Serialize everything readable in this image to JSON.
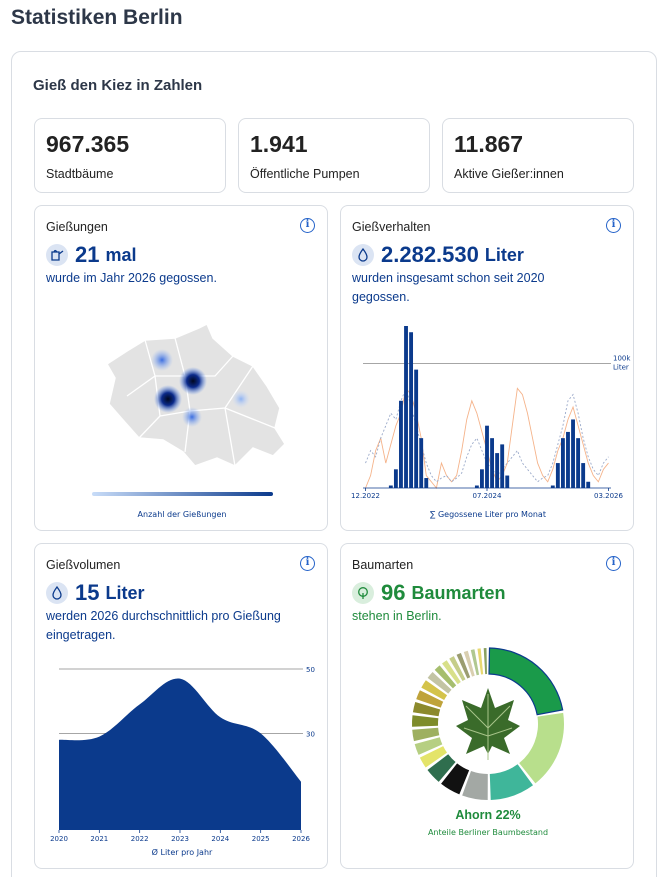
{
  "page_title": "Statistiken Berlin",
  "panel_title": "Gieß den Kiez in Zahlen",
  "stats": [
    {
      "value": "967.365",
      "label": "Stadtbäume"
    },
    {
      "value": "1.941",
      "label": "Öffentliche Pumpen"
    },
    {
      "value": "11.867",
      "label": "Aktive Gießer:innen"
    }
  ],
  "cards": {
    "giessungen": {
      "title": "Gießungen",
      "value": "21",
      "unit": "mal",
      "subtitle": "wurde im Jahr 2026 gegossen.",
      "legend": "Anzahl der Gießungen",
      "icon": "watering-can-icon"
    },
    "giessverhalten": {
      "title": "Gießverhalten",
      "value": "2.282.530",
      "unit": "Liter",
      "subtitle": "wurden insgesamt schon seit 2020 gegossen.",
      "caption": "∑ Gegossene Liter pro Monat",
      "ref_label_1": "100k",
      "ref_label_2": "Liter",
      "icon": "water-drop-icon"
    },
    "giessvolumen": {
      "title": "Gießvolumen",
      "value": "15",
      "unit": "Liter",
      "subtitle": "werden 2026 durchschnittlich pro Gießung eingetragen.",
      "caption": "Ø Liter pro Jahr",
      "icon": "water-drop-icon"
    },
    "baumarten": {
      "title": "Baumarten",
      "value": "96",
      "unit": "Baumarten",
      "subtitle": "stehen in Berlin.",
      "highlight": "Ahorn 22%",
      "caption": "Anteile Berliner Baumbestand",
      "icon": "tree-icon"
    }
  },
  "chart_data": [
    {
      "type": "bar",
      "title": "",
      "xlabel": "∑ Gegossene Liter pro Monat",
      "x_ticks": [
        "12.2022",
        "07.2024",
        "03.2026"
      ],
      "reference_line": "100k Liter",
      "ylim": [
        0,
        130000
      ],
      "values": [
        0,
        0,
        0,
        0,
        0,
        2000,
        15000,
        70000,
        130000,
        125000,
        95000,
        40000,
        8000,
        0,
        0,
        0,
        0,
        0,
        0,
        0,
        0,
        0,
        2000,
        15000,
        50000,
        40000,
        28000,
        35000,
        10000,
        0,
        0,
        0,
        0,
        0,
        0,
        0,
        0,
        2000,
        20000,
        40000,
        45000,
        55000,
        40000,
        20000,
        5000,
        0,
        0,
        0,
        0
      ],
      "lines": [
        {
          "color": "#f5b38a",
          "values": [
            0,
            10000,
            30000,
            40000,
            20000,
            35000,
            50000,
            60000,
            80000,
            75000,
            60000,
            40000,
            10000,
            5000,
            0,
            20000,
            10000,
            5000,
            10000,
            30000,
            55000,
            70000,
            60000,
            45000,
            30000,
            15000,
            5000,
            10000,
            20000,
            50000,
            80000,
            75000,
            60000,
            40000,
            20000,
            10000,
            5000,
            15000,
            30000,
            40000,
            55000,
            65000,
            50000,
            35000,
            20000,
            10000,
            5000,
            15000,
            20000
          ]
        },
        {
          "color": "#9aa9c9",
          "values": [
            20000,
            30000,
            25000,
            40000,
            50000,
            60000,
            55000,
            70000,
            80000,
            65000,
            50000,
            35000,
            20000,
            10000,
            5000,
            8000,
            10000,
            5000,
            8000,
            12000,
            25000,
            35000,
            40000,
            30000,
            20000,
            15000,
            10000,
            15000,
            20000,
            25000,
            30000,
            20000,
            15000,
            10000,
            5000,
            8000,
            10000,
            20000,
            35000,
            50000,
            70000,
            75000,
            60000,
            40000,
            25000,
            15000,
            10000,
            20000,
            25000
          ]
        }
      ]
    },
    {
      "type": "area",
      "title": "",
      "xlabel": "Ø Liter pro Jahr",
      "x": [
        "2020",
        "2021",
        "2022",
        "2023",
        "2024",
        "2025",
        "2026"
      ],
      "values": [
        28,
        29,
        39,
        47,
        35,
        30,
        15
      ],
      "y_ticks": [
        30,
        50
      ],
      "ylim": [
        0,
        50
      ]
    },
    {
      "type": "pie",
      "title": "",
      "highlight": "Ahorn 22%",
      "segments": [
        {
          "name": "Ahorn",
          "value": 22,
          "color": "#1a9a4a"
        },
        {
          "value": 17,
          "color": "#b8df8c"
        },
        {
          "value": 10,
          "color": "#3fb69a"
        },
        {
          "value": 6,
          "color": "#a3a8a4"
        },
        {
          "value": 5,
          "color": "#111111"
        },
        {
          "value": 4,
          "color": "#2f6e4e"
        },
        {
          "value": 3,
          "color": "#e4e46a"
        },
        {
          "value": 3,
          "color": "#b6cf82"
        },
        {
          "value": 3,
          "color": "#9eb060"
        },
        {
          "value": 3,
          "color": "#7e8c2a"
        },
        {
          "value": 2.8,
          "color": "#8c8a2c"
        },
        {
          "value": 2.6,
          "color": "#bfa33a"
        },
        {
          "value": 2.4,
          "color": "#d4c34a"
        },
        {
          "value": 2.2,
          "color": "#c3c4a4"
        },
        {
          "value": 2,
          "color": "#a6be6e"
        },
        {
          "value": 1.8,
          "color": "#d8e08a"
        },
        {
          "value": 1.7,
          "color": "#c5cd8a"
        },
        {
          "value": 1.6,
          "color": "#9b9d70"
        },
        {
          "value": 1.5,
          "color": "#d9cfb0"
        },
        {
          "value": 1.4,
          "color": "#b0c890"
        },
        {
          "value": 1.3,
          "color": "#e8d870"
        },
        {
          "value": 1.2,
          "color": "#8aa060"
        }
      ]
    }
  ]
}
